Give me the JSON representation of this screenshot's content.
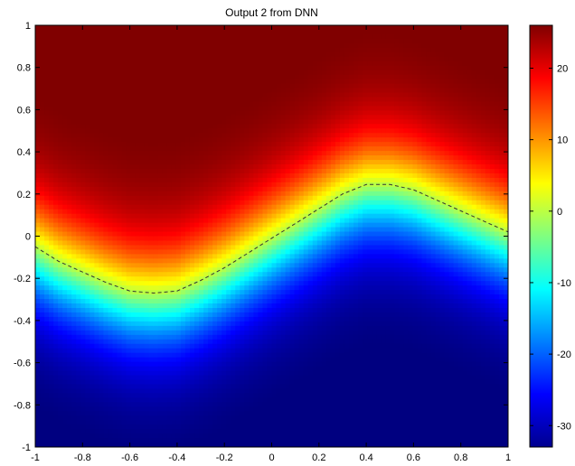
{
  "figure": {
    "title": "Output 2 from DNN"
  },
  "chart_data": {
    "type": "heatmap",
    "title": "Output 2 from DNN",
    "xlabel": "",
    "ylabel": "",
    "xlim": [
      -1,
      1
    ],
    "ylim": [
      -1,
      1
    ],
    "x_ticks": [
      -1,
      -0.8,
      -0.6,
      -0.4,
      -0.2,
      0,
      0.2,
      0.4,
      0.6,
      0.8,
      1
    ],
    "x_tick_labels": [
      "-1",
      "-0.8",
      "-0.6",
      "-0.4",
      "-0.2",
      "0",
      "0.2",
      "0.4",
      "0.6",
      "0.8",
      "1"
    ],
    "y_ticks": [
      1,
      0.8,
      0.6,
      0.4,
      0.2,
      0,
      -0.2,
      -0.4,
      -0.6,
      -0.8,
      -1
    ],
    "y_tick_labels": [
      "1",
      "0.8",
      "0.6",
      "0.4",
      "0.2",
      "0",
      "-0.2",
      "-0.4",
      "-0.6",
      "-0.8",
      "-1"
    ],
    "colormap": "jet",
    "clim": [
      -33,
      26
    ],
    "colorbar_ticks": [
      20,
      10,
      0,
      -10,
      -20,
      -30
    ],
    "colorbar_tick_labels": [
      "20",
      "10",
      "0",
      "-10",
      "-20",
      "-30"
    ],
    "zero_contour": {
      "style": "dashed",
      "x": [
        -1,
        -0.9,
        -0.8,
        -0.7,
        -0.6,
        -0.5,
        -0.4,
        -0.3,
        -0.2,
        -0.1,
        0,
        0.1,
        0.2,
        0.3,
        0.4,
        0.5,
        0.6,
        0.7,
        0.8,
        0.9,
        1
      ],
      "y": [
        -0.05,
        -0.12,
        -0.17,
        -0.22,
        -0.26,
        -0.27,
        -0.26,
        -0.21,
        -0.15,
        -0.08,
        -0.01,
        0.06,
        0.13,
        0.2,
        0.245,
        0.245,
        0.22,
        0.17,
        0.12,
        0.07,
        0.02
      ]
    },
    "surface": {
      "description_values": "value ≈ 38·(y − boundary(x)) + 10·(x + 0.2·cos), saturating near +26 top and −33 bottom",
      "top_max": 26,
      "bottom_min": -33
    }
  }
}
